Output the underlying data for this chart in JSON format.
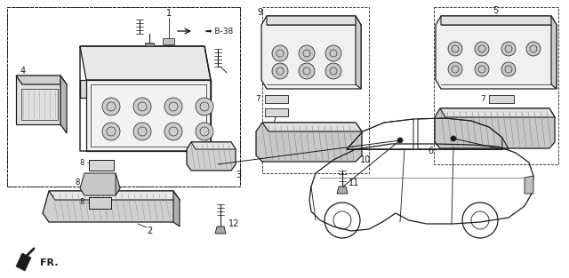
{
  "bg_color": "#ffffff",
  "line_color": "#1a1a1a",
  "gray_fill": "#b8b8b8",
  "light_gray": "#d8d8d8",
  "mid_gray": "#999999"
}
